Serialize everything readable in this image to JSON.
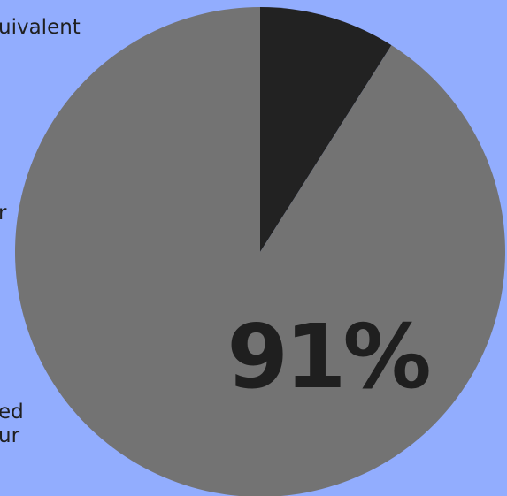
{
  "background_color": "#92adfe",
  "text_fragments": [
    "uivalent",
    "",
    "r",
    "ed",
    "ur"
  ],
  "chart_data": {
    "type": "pie",
    "title": "",
    "slices": [
      {
        "label": "",
        "value": 9,
        "color": "#222222"
      },
      {
        "label": "",
        "value": 91,
        "color": "#737373"
      }
    ],
    "annotation": {
      "text": "91%",
      "color": "#1f1f1f"
    }
  }
}
